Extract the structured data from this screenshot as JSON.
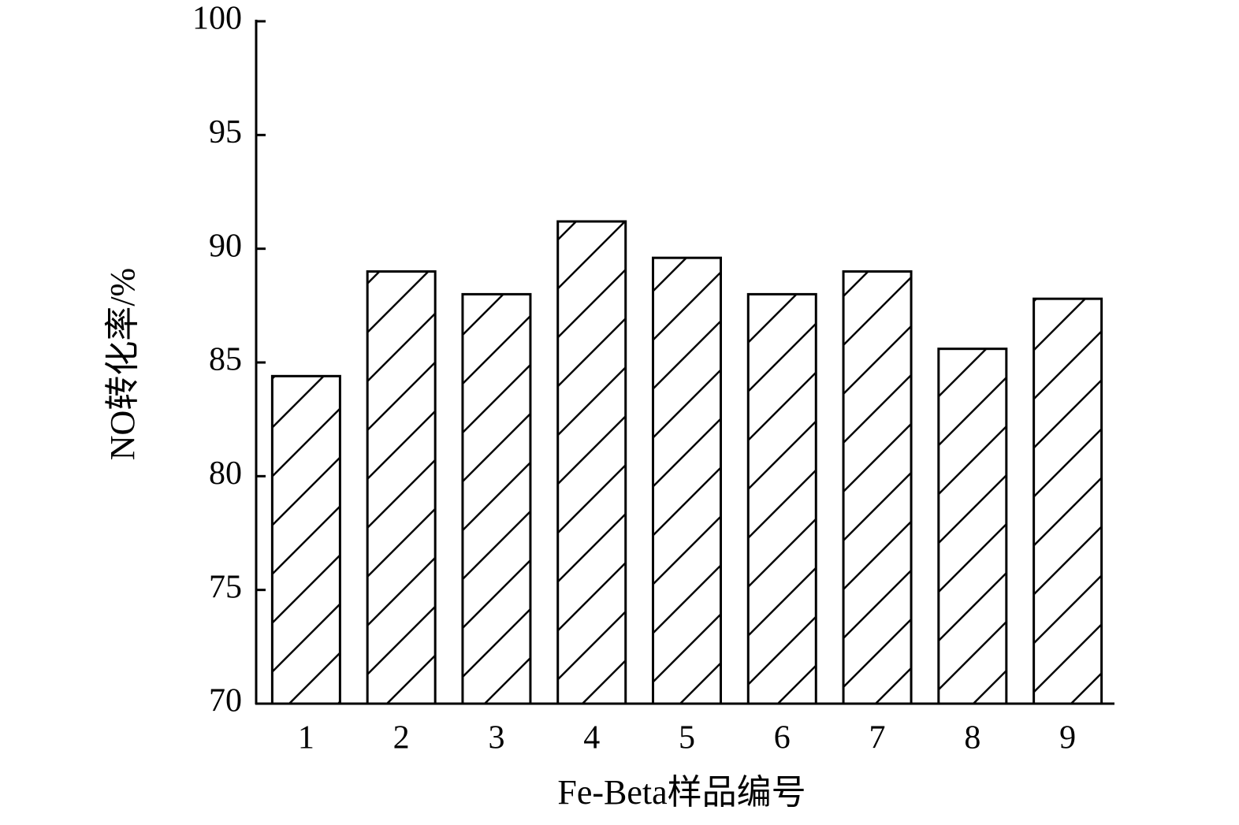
{
  "chart_data": {
    "type": "bar",
    "x_label": "Fe-Beta样品编号",
    "y_label": "NO转化率/%",
    "categories": [
      "1",
      "2",
      "3",
      "4",
      "5",
      "6",
      "7",
      "8",
      "9"
    ],
    "values": [
      84.4,
      89.0,
      88.0,
      91.2,
      89.6,
      88.0,
      89.0,
      85.6,
      87.8
    ],
    "color": "#000000",
    "ylim": [
      70,
      100
    ],
    "yticks": [
      70,
      75,
      80,
      85,
      90,
      95,
      100
    ],
    "grid": false
  }
}
